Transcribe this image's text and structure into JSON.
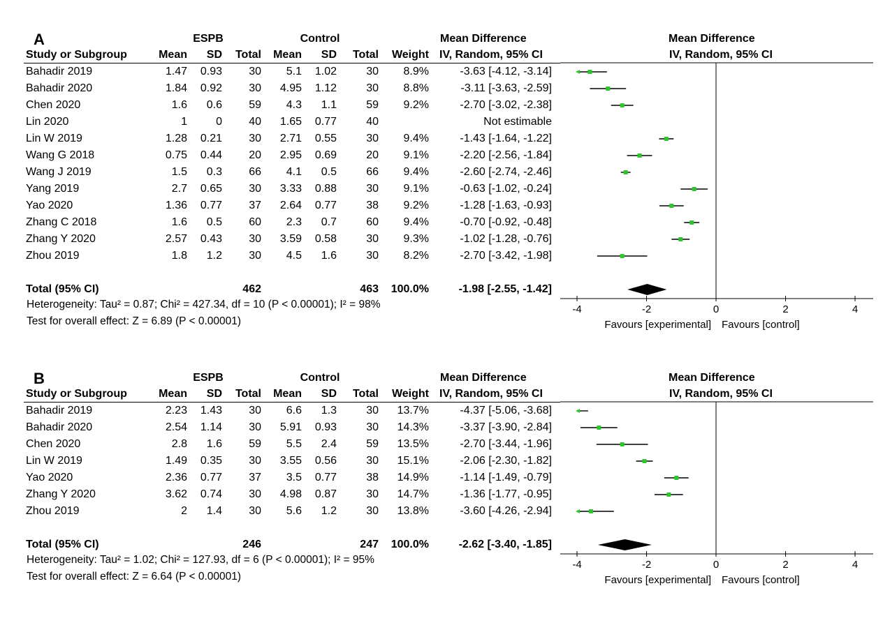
{
  "chart_data": [
    {
      "type": "forest",
      "panel_label": "A",
      "group_headers": [
        "ESPB",
        "Control"
      ],
      "effect_header": "Mean Difference",
      "columns": [
        "Study or Subgroup",
        "Mean",
        "SD",
        "Total",
        "Mean",
        "SD",
        "Total",
        "Weight",
        "IV, Random, 95% CI"
      ],
      "plot_header_top": "Mean Difference",
      "plot_header_bottom": "IV, Random, 95% CI",
      "studies": [
        {
          "name": "Bahadir 2019",
          "e_mean": "1.47",
          "e_sd": "0.93",
          "e_total": "30",
          "c_mean": "5.1",
          "c_sd": "1.02",
          "c_total": "30",
          "weight": "8.9%",
          "ci_text": "-3.63 [-4.12, -3.14]",
          "md": -3.63,
          "lo": -4.12,
          "hi": -3.14
        },
        {
          "name": "Bahadir 2020",
          "e_mean": "1.84",
          "e_sd": "0.92",
          "e_total": "30",
          "c_mean": "4.95",
          "c_sd": "1.12",
          "c_total": "30",
          "weight": "8.8%",
          "ci_text": "-3.11 [-3.63, -2.59]",
          "md": -3.11,
          "lo": -3.63,
          "hi": -2.59
        },
        {
          "name": "Chen 2020",
          "e_mean": "1.6",
          "e_sd": "0.6",
          "e_total": "59",
          "c_mean": "4.3",
          "c_sd": "1.1",
          "c_total": "59",
          "weight": "9.2%",
          "ci_text": "-2.70 [-3.02, -2.38]",
          "md": -2.7,
          "lo": -3.02,
          "hi": -2.38
        },
        {
          "name": "Lin 2020",
          "e_mean": "1",
          "e_sd": "0",
          "e_total": "40",
          "c_mean": "1.65",
          "c_sd": "0.77",
          "c_total": "40",
          "weight": "",
          "ci_text": "Not estimable",
          "md": null,
          "lo": null,
          "hi": null
        },
        {
          "name": "Lin W 2019",
          "e_mean": "1.28",
          "e_sd": "0.21",
          "e_total": "30",
          "c_mean": "2.71",
          "c_sd": "0.55",
          "c_total": "30",
          "weight": "9.4%",
          "ci_text": "-1.43 [-1.64, -1.22]",
          "md": -1.43,
          "lo": -1.64,
          "hi": -1.22
        },
        {
          "name": "Wang G 2018",
          "e_mean": "0.75",
          "e_sd": "0.44",
          "e_total": "20",
          "c_mean": "2.95",
          "c_sd": "0.69",
          "c_total": "20",
          "weight": "9.1%",
          "ci_text": "-2.20 [-2.56, -1.84]",
          "md": -2.2,
          "lo": -2.56,
          "hi": -1.84
        },
        {
          "name": "Wang J 2019",
          "e_mean": "1.5",
          "e_sd": "0.3",
          "e_total": "66",
          "c_mean": "4.1",
          "c_sd": "0.5",
          "c_total": "66",
          "weight": "9.4%",
          "ci_text": "-2.60 [-2.74, -2.46]",
          "md": -2.6,
          "lo": -2.74,
          "hi": -2.46
        },
        {
          "name": "Yang 2019",
          "e_mean": "2.7",
          "e_sd": "0.65",
          "e_total": "30",
          "c_mean": "3.33",
          "c_sd": "0.88",
          "c_total": "30",
          "weight": "9.1%",
          "ci_text": "-0.63 [-1.02, -0.24]",
          "md": -0.63,
          "lo": -1.02,
          "hi": -0.24
        },
        {
          "name": "Yao 2020",
          "e_mean": "1.36",
          "e_sd": "0.77",
          "e_total": "37",
          "c_mean": "2.64",
          "c_sd": "0.77",
          "c_total": "38",
          "weight": "9.2%",
          "ci_text": "-1.28 [-1.63, -0.93]",
          "md": -1.28,
          "lo": -1.63,
          "hi": -0.93
        },
        {
          "name": "Zhang C 2018",
          "e_mean": "1.6",
          "e_sd": "0.5",
          "e_total": "60",
          "c_mean": "2.3",
          "c_sd": "0.7",
          "c_total": "60",
          "weight": "9.4%",
          "ci_text": "-0.70 [-0.92, -0.48]",
          "md": -0.7,
          "lo": -0.92,
          "hi": -0.48
        },
        {
          "name": "Zhang Y 2020",
          "e_mean": "2.57",
          "e_sd": "0.43",
          "e_total": "30",
          "c_mean": "3.59",
          "c_sd": "0.58",
          "c_total": "30",
          "weight": "9.3%",
          "ci_text": "-1.02 [-1.28, -0.76]",
          "md": -1.02,
          "lo": -1.28,
          "hi": -0.76
        },
        {
          "name": "Zhou 2019",
          "e_mean": "1.8",
          "e_sd": "1.2",
          "e_total": "30",
          "c_mean": "4.5",
          "c_sd": "1.6",
          "c_total": "30",
          "weight": "8.2%",
          "ci_text": "-2.70 [-3.42, -1.98]",
          "md": -2.7,
          "lo": -3.42,
          "hi": -1.98
        }
      ],
      "total": {
        "name": "Total (95% CI)",
        "e_total": "462",
        "c_total": "463",
        "weight": "100.0%",
        "ci_text": "-1.98 [-2.55, -1.42]",
        "md": -1.98,
        "lo": -2.55,
        "hi": -1.42
      },
      "heterogeneity": "Heterogeneity: Tau² = 0.87; Chi² = 427.34, df = 10 (P < 0.00001); I² = 98%",
      "overall_effect": "Test for overall effect: Z = 6.89 (P < 0.00001)",
      "xlim": [
        -4,
        4
      ],
      "ticks": [
        -4,
        -2,
        0,
        2,
        4
      ],
      "tick_labels": [
        "-4",
        "-2",
        "0",
        "2",
        "4"
      ],
      "favours_left": "Favours [experimental]",
      "favours_right": "Favours [control]"
    },
    {
      "type": "forest",
      "panel_label": "B",
      "group_headers": [
        "ESPB",
        "Control"
      ],
      "effect_header": "Mean Difference",
      "columns": [
        "Study or Subgroup",
        "Mean",
        "SD",
        "Total",
        "Mean",
        "SD",
        "Total",
        "Weight",
        "IV, Random, 95% CI"
      ],
      "plot_header_top": "Mean Difference",
      "plot_header_bottom": "IV, Random, 95% CI",
      "studies": [
        {
          "name": "Bahadir 2019",
          "e_mean": "2.23",
          "e_sd": "1.43",
          "e_total": "30",
          "c_mean": "6.6",
          "c_sd": "1.3",
          "c_total": "30",
          "weight": "13.7%",
          "ci_text": "-4.37 [-5.06, -3.68]",
          "md": -4.37,
          "lo": -5.06,
          "hi": -3.68
        },
        {
          "name": "Bahadir 2020",
          "e_mean": "2.54",
          "e_sd": "1.14",
          "e_total": "30",
          "c_mean": "5.91",
          "c_sd": "0.93",
          "c_total": "30",
          "weight": "14.3%",
          "ci_text": "-3.37 [-3.90, -2.84]",
          "md": -3.37,
          "lo": -3.9,
          "hi": -2.84
        },
        {
          "name": "Chen 2020",
          "e_mean": "2.8",
          "e_sd": "1.6",
          "e_total": "59",
          "c_mean": "5.5",
          "c_sd": "2.4",
          "c_total": "59",
          "weight": "13.5%",
          "ci_text": "-2.70 [-3.44, -1.96]",
          "md": -2.7,
          "lo": -3.44,
          "hi": -1.96
        },
        {
          "name": "Lin W 2019",
          "e_mean": "1.49",
          "e_sd": "0.35",
          "e_total": "30",
          "c_mean": "3.55",
          "c_sd": "0.56",
          "c_total": "30",
          "weight": "15.1%",
          "ci_text": "-2.06 [-2.30, -1.82]",
          "md": -2.06,
          "lo": -2.3,
          "hi": -1.82
        },
        {
          "name": "Yao 2020",
          "e_mean": "2.36",
          "e_sd": "0.77",
          "e_total": "37",
          "c_mean": "3.5",
          "c_sd": "0.77",
          "c_total": "38",
          "weight": "14.9%",
          "ci_text": "-1.14 [-1.49, -0.79]",
          "md": -1.14,
          "lo": -1.49,
          "hi": -0.79
        },
        {
          "name": "Zhang Y 2020",
          "e_mean": "3.62",
          "e_sd": "0.74",
          "e_total": "30",
          "c_mean": "4.98",
          "c_sd": "0.87",
          "c_total": "30",
          "weight": "14.7%",
          "ci_text": "-1.36 [-1.77, -0.95]",
          "md": -1.36,
          "lo": -1.77,
          "hi": -0.95
        },
        {
          "name": "Zhou 2019",
          "e_mean": "2",
          "e_sd": "1.4",
          "e_total": "30",
          "c_mean": "5.6",
          "c_sd": "1.2",
          "c_total": "30",
          "weight": "13.8%",
          "ci_text": "-3.60 [-4.26, -2.94]",
          "md": -3.6,
          "lo": -4.26,
          "hi": -2.94
        }
      ],
      "total": {
        "name": "Total (95% CI)",
        "e_total": "246",
        "c_total": "247",
        "weight": "100.0%",
        "ci_text": "-2.62 [-3.40, -1.85]",
        "md": -2.62,
        "lo": -3.4,
        "hi": -1.85
      },
      "heterogeneity": "Heterogeneity: Tau² = 1.02; Chi² = 127.93, df = 6 (P < 0.00001); I² = 95%",
      "overall_effect": "Test for overall effect: Z = 6.64 (P < 0.00001)",
      "xlim": [
        -4,
        4
      ],
      "ticks": [
        -4,
        -2,
        0,
        2,
        4
      ],
      "tick_labels": [
        "-4",
        "-2",
        "0",
        "2",
        "4"
      ],
      "favours_left": "Favours [experimental]",
      "favours_right": "Favours [control]"
    }
  ],
  "colors": {
    "marker": "#2ec52e",
    "diamond": "#000000",
    "line": "#000000"
  }
}
